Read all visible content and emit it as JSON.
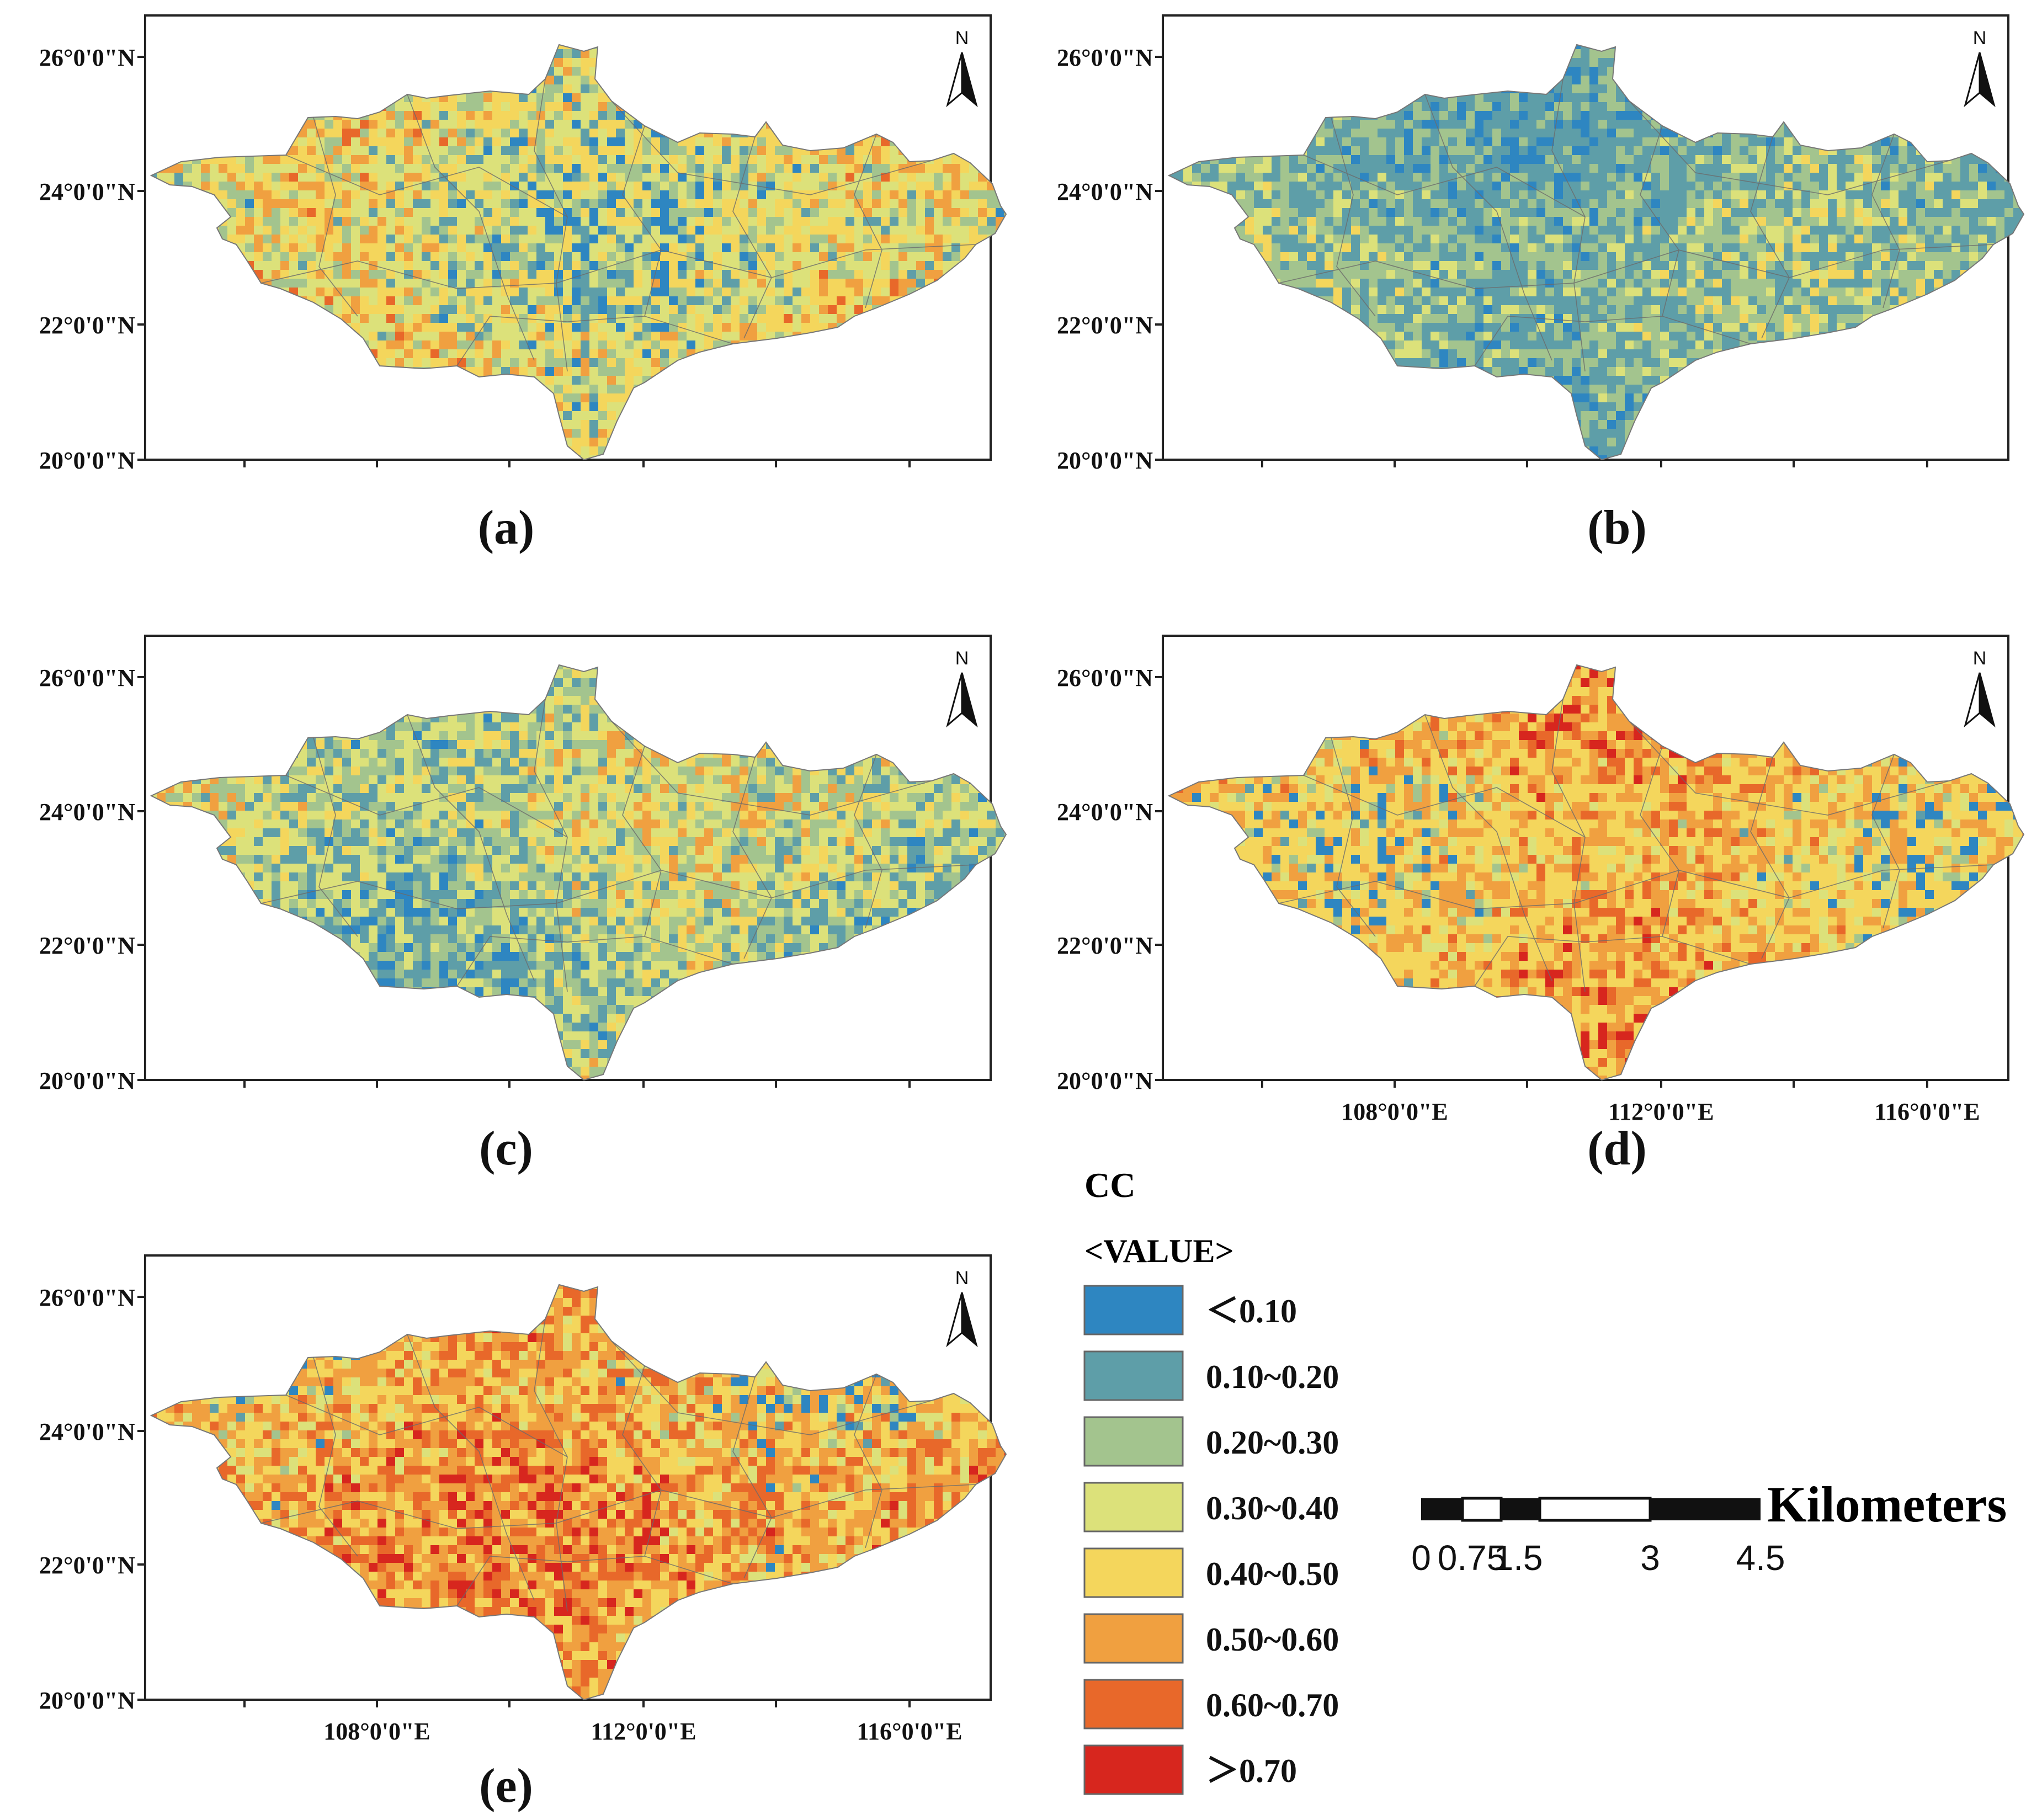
{
  "figure": {
    "panels": [
      {
        "id": "a",
        "caption": "(a)",
        "pattern": "mixed",
        "show_lon_labels": false
      },
      {
        "id": "b",
        "caption": "(b)",
        "pattern": "low",
        "show_lon_labels": false
      },
      {
        "id": "c",
        "caption": "(c)",
        "pattern": "lowmid",
        "show_lon_labels": false
      },
      {
        "id": "d",
        "caption": "(d)",
        "pattern": "midhigh",
        "show_lon_labels": true
      },
      {
        "id": "e",
        "caption": "(e)",
        "pattern": "high",
        "show_lon_labels": true
      }
    ],
    "lat_labels": [
      "26°0'0\"N",
      "24°0'0\"N",
      "22°0'0\"N",
      "20°0'0\"N"
    ],
    "lon_labels": [
      "108°0'0\"E",
      "112°0'0\"E",
      "116°0'0\"E"
    ],
    "north_arrow_label": "N"
  },
  "legend": {
    "title": "CC",
    "subtitle": "<VALUE>",
    "classes": [
      {
        "label": "＜0.10",
        "color": "#2E86C1"
      },
      {
        "label": "0.10~0.20",
        "color": "#5E9EA8"
      },
      {
        "label": "0.20~0.30",
        "color": "#A3C48E"
      },
      {
        "label": "0.30~0.40",
        "color": "#DCE17A"
      },
      {
        "label": "0.40~0.50",
        "color": "#F4D65C"
      },
      {
        "label": "0.50~0.60",
        "color": "#F0A040"
      },
      {
        "label": "0.60~0.70",
        "color": "#E8682A"
      },
      {
        "label": "＞0.70",
        "color": "#D7261E"
      }
    ]
  },
  "scalebar": {
    "unit": "Kilometers",
    "ticks": [
      "0",
      "0.75",
      "1.5",
      "3",
      "4.5"
    ]
  }
}
